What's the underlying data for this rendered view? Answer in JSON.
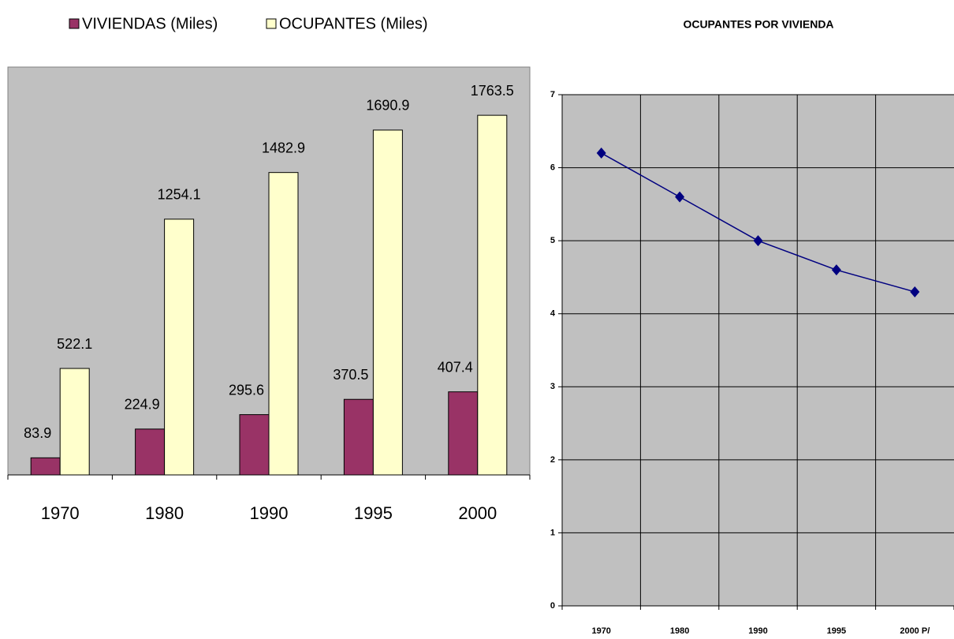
{
  "chart_data": [
    {
      "type": "bar",
      "categories": [
        "1970",
        "1980",
        "1990",
        "1995",
        "2000"
      ],
      "series": [
        {
          "name": "VIVIENDAS  (Miles)",
          "color": "#993366",
          "values": [
            83.9,
            224.9,
            295.6,
            370.5,
            407.4
          ]
        },
        {
          "name": "OCUPANTES (Miles)",
          "color": "#ffffcc",
          "values": [
            522.1,
            1254.1,
            1482.9,
            1690.9,
            1763.5
          ]
        }
      ],
      "ylim": [
        0,
        2000
      ],
      "legend": "top"
    },
    {
      "type": "line",
      "title": "OCUPANTES POR VIVIENDA",
      "categories": [
        "1970",
        "1980",
        "1990",
        "1995",
        "2000 P/"
      ],
      "series": [
        {
          "name": "OCUPANTES POR VIVIENDA",
          "color": "#000080",
          "values": [
            6.2,
            5.6,
            5.0,
            4.6,
            4.3
          ]
        }
      ],
      "ylim": [
        0,
        7
      ],
      "yticks": [
        0,
        1,
        2,
        3,
        4,
        5,
        6,
        7
      ],
      "grid": true
    }
  ]
}
